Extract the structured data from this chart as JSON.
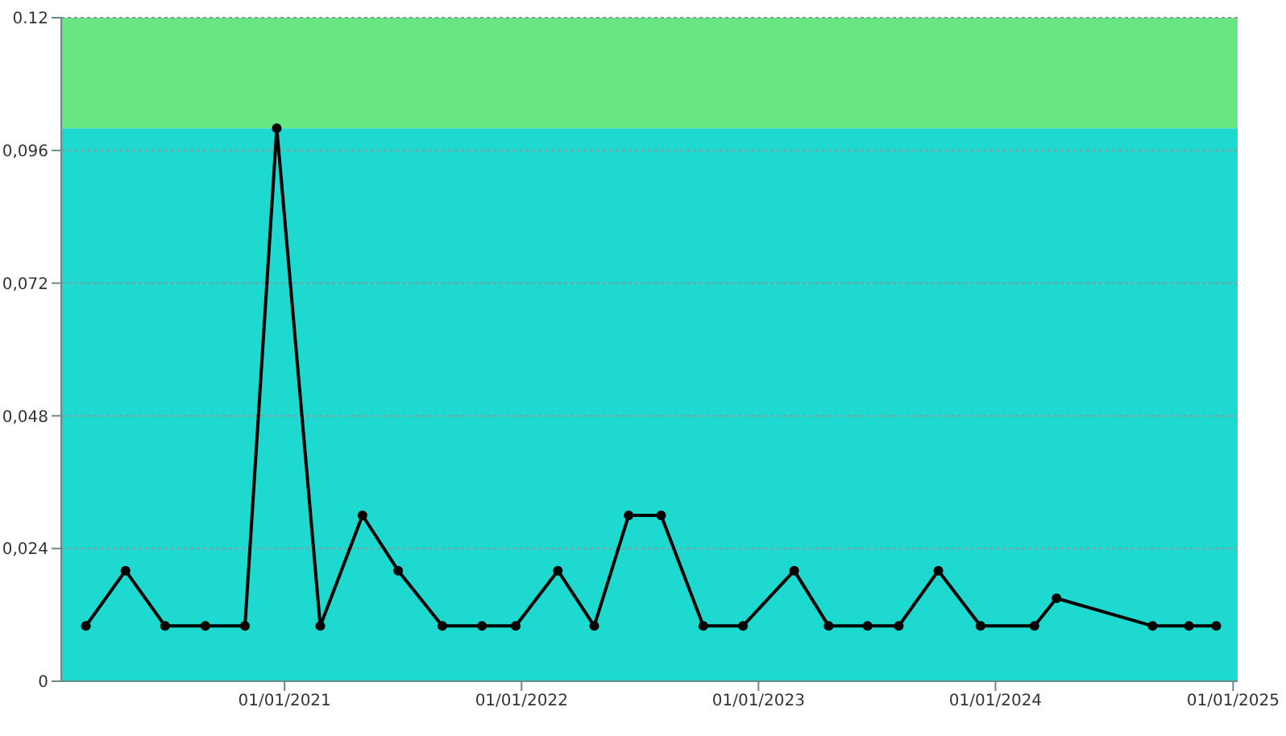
{
  "chart_data": {
    "type": "line",
    "x": [
      "2020-03-01",
      "2020-05-01",
      "2020-07-01",
      "2020-09-01",
      "2020-11-01",
      "2020-12-20",
      "2021-02-25",
      "2021-05-01",
      "2021-06-25",
      "2021-09-01",
      "2021-11-01",
      "2021-12-23",
      "2022-02-26",
      "2022-04-23",
      "2022-06-15",
      "2022-08-04",
      "2022-10-08",
      "2022-12-08",
      "2023-02-25",
      "2023-04-19",
      "2023-06-18",
      "2023-08-05",
      "2023-10-05",
      "2023-12-09",
      "2024-03-01",
      "2024-04-04",
      "2024-08-30",
      "2024-10-25",
      "2024-12-06"
    ],
    "series": [
      {
        "color": "#000000",
        "values": [
          0.01,
          0.02,
          0.01,
          0.01,
          0.01,
          0.1,
          0.01,
          0.03,
          0.02,
          0.01,
          0.01,
          0.01,
          0.02,
          0.01,
          0.03,
          0.03,
          0.01,
          0.01,
          0.02,
          0.01,
          0.01,
          0.01,
          0.02,
          0.01,
          0.01,
          0.015,
          0.01,
          0.01,
          0.01
        ]
      }
    ],
    "xlim": [
      "2020-01-23",
      "2025-01-08"
    ],
    "xticks": [
      {
        "value": "2021-01-01",
        "label": "01/01/2021"
      },
      {
        "value": "2022-01-01",
        "label": "01/01/2022"
      },
      {
        "value": "2023-01-01",
        "label": "01/01/2023"
      },
      {
        "value": "2024-01-01",
        "label": "01/01/2024"
      },
      {
        "value": "2025-01-01",
        "label": "01/01/2025"
      }
    ],
    "ylim": [
      0,
      0.12
    ],
    "yticks": [
      0,
      {
        "value": 0.024,
        "label": "0,024"
      },
      {
        "value": 0.048,
        "label": "0,048"
      },
      {
        "value": 0.072,
        "label": "0,072"
      },
      {
        "value": 0.096,
        "label": "0,096"
      },
      0.12
    ],
    "bands": [
      {
        "axis": "y",
        "from": 0,
        "to": 0.1,
        "color": "#1dd9cf"
      },
      {
        "axis": "y",
        "from": 0.1,
        "to": 0.12,
        "color": "#68e682"
      }
    ],
    "grid": "y",
    "marker": "circle",
    "line_style": "solid"
  }
}
